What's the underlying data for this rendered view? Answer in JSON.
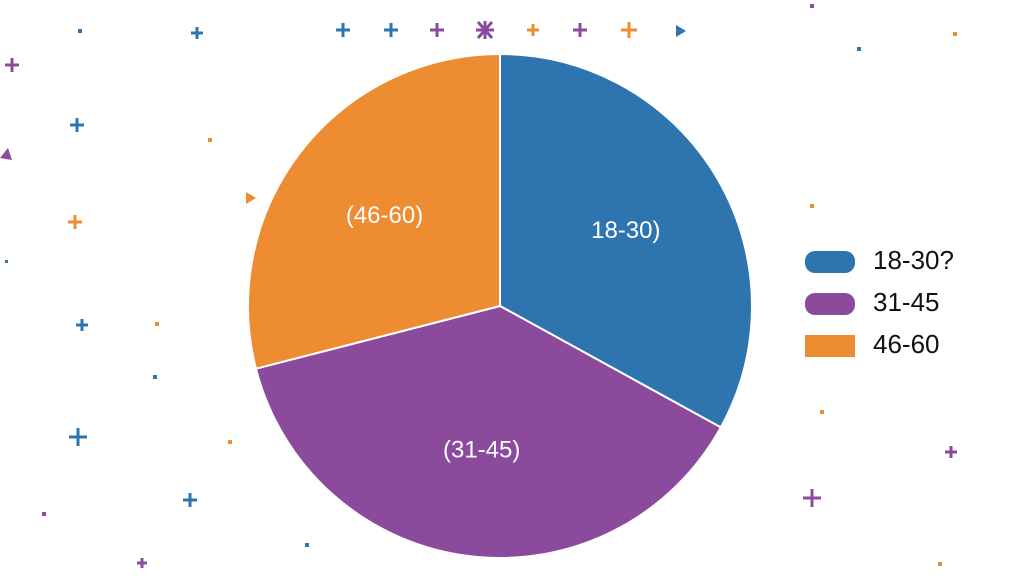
{
  "chart_data": {
    "type": "pie",
    "categories": [
      "18-30?",
      "31-45",
      "46-60"
    ],
    "slice_labels": [
      "18-30)",
      "(31-45)",
      "(46-60)"
    ],
    "values": [
      33,
      38,
      29
    ],
    "colors": [
      "#2e75b0",
      "#8b4a9c",
      "#ee8c32"
    ],
    "legend": "right"
  }
}
